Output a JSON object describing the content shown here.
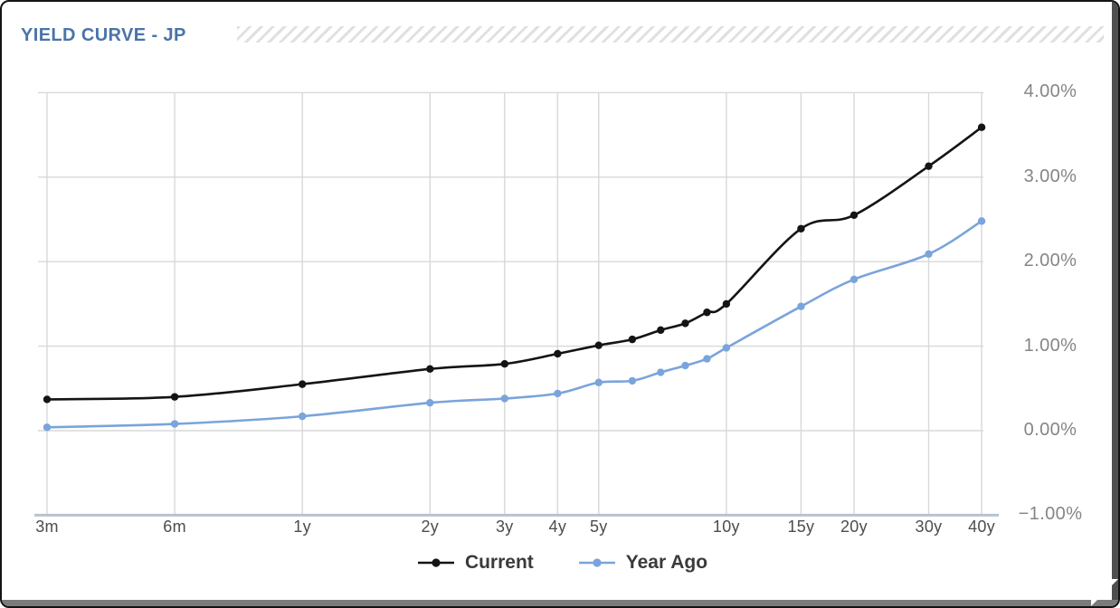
{
  "header": {
    "title": "YIELD CURVE - JP"
  },
  "colors": {
    "title_text": "#4a74a8",
    "grid": "#d8d8d8",
    "axis_line": "#b7c2cf",
    "x_tick_text": "#4d4d4d",
    "y_tick_text": "#858585",
    "legend_text": "#3a3a3a",
    "series_current": "#141414",
    "series_year_ago": "#7aa4db"
  },
  "legend": {
    "items": [
      "Current",
      "Year Ago"
    ]
  },
  "chart_data": {
    "type": "line",
    "title": "YIELD CURVE - JP",
    "x_scale": "log",
    "x_unit": "tenor",
    "y_unit": "%",
    "ylim": [
      -1,
      4
    ],
    "grid": true,
    "legend_position": "bottom",
    "categories": [
      "3m",
      "6m",
      "1y",
      "2y",
      "3y",
      "4y",
      "5y",
      "6y",
      "7y",
      "8y",
      "9y",
      "10y",
      "15y",
      "20y",
      "30y",
      "40y"
    ],
    "x_years": [
      0.25,
      0.5,
      1,
      2,
      3,
      4,
      5,
      6,
      7,
      8,
      9,
      10,
      15,
      20,
      30,
      40
    ],
    "x_ticks": [
      {
        "label": "3m",
        "years": 0.25
      },
      {
        "label": "6m",
        "years": 0.5
      },
      {
        "label": "1y",
        "years": 1
      },
      {
        "label": "2y",
        "years": 2
      },
      {
        "label": "3y",
        "years": 3
      },
      {
        "label": "4y",
        "years": 4
      },
      {
        "label": "5y",
        "years": 5
      },
      {
        "label": "10y",
        "years": 10
      },
      {
        "label": "15y",
        "years": 15
      },
      {
        "label": "20y",
        "years": 20
      },
      {
        "label": "30y",
        "years": 30
      },
      {
        "label": "40y",
        "years": 40
      }
    ],
    "y_ticks": [
      {
        "label": "4.00%",
        "value": 4
      },
      {
        "label": "3.00%",
        "value": 3
      },
      {
        "label": "2.00%",
        "value": 2
      },
      {
        "label": "1.00%",
        "value": 1
      },
      {
        "label": "0.00%",
        "value": 0
      },
      {
        "label": "−1.00%",
        "value": -1
      }
    ],
    "series": [
      {
        "name": "Current",
        "color": "#141414",
        "values": [
          0.37,
          0.4,
          0.55,
          0.73,
          0.79,
          0.91,
          1.01,
          1.08,
          1.19,
          1.27,
          1.4,
          1.5,
          2.39,
          2.55,
          3.13,
          3.59
        ]
      },
      {
        "name": "Year Ago",
        "color": "#7aa4db",
        "values": [
          0.04,
          0.08,
          0.17,
          0.33,
          0.38,
          0.44,
          0.57,
          0.59,
          0.69,
          0.77,
          0.85,
          0.98,
          1.47,
          1.79,
          2.09,
          2.48
        ]
      }
    ]
  }
}
